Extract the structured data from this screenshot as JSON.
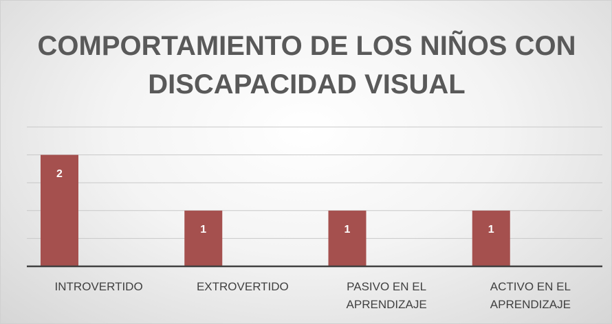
{
  "chart_data": {
    "type": "bar",
    "title": "COMPORTAMIENTO DE LOS NIÑOS CON DISCAPACIDAD VISUAL",
    "categories": [
      "INTROVERTIDO",
      "EXTROVERTIDO",
      "PASIVO EN EL APRENDIZAJE",
      "ACTIVO EN EL APRENDIZAJE"
    ],
    "values": [
      2,
      1,
      1,
      1
    ],
    "color": "#a5504e",
    "ylim": [
      0,
      2.5
    ],
    "yticks": [
      0,
      0.5,
      1,
      1.5,
      2,
      2.5
    ],
    "grid": true,
    "data_labels": true
  }
}
